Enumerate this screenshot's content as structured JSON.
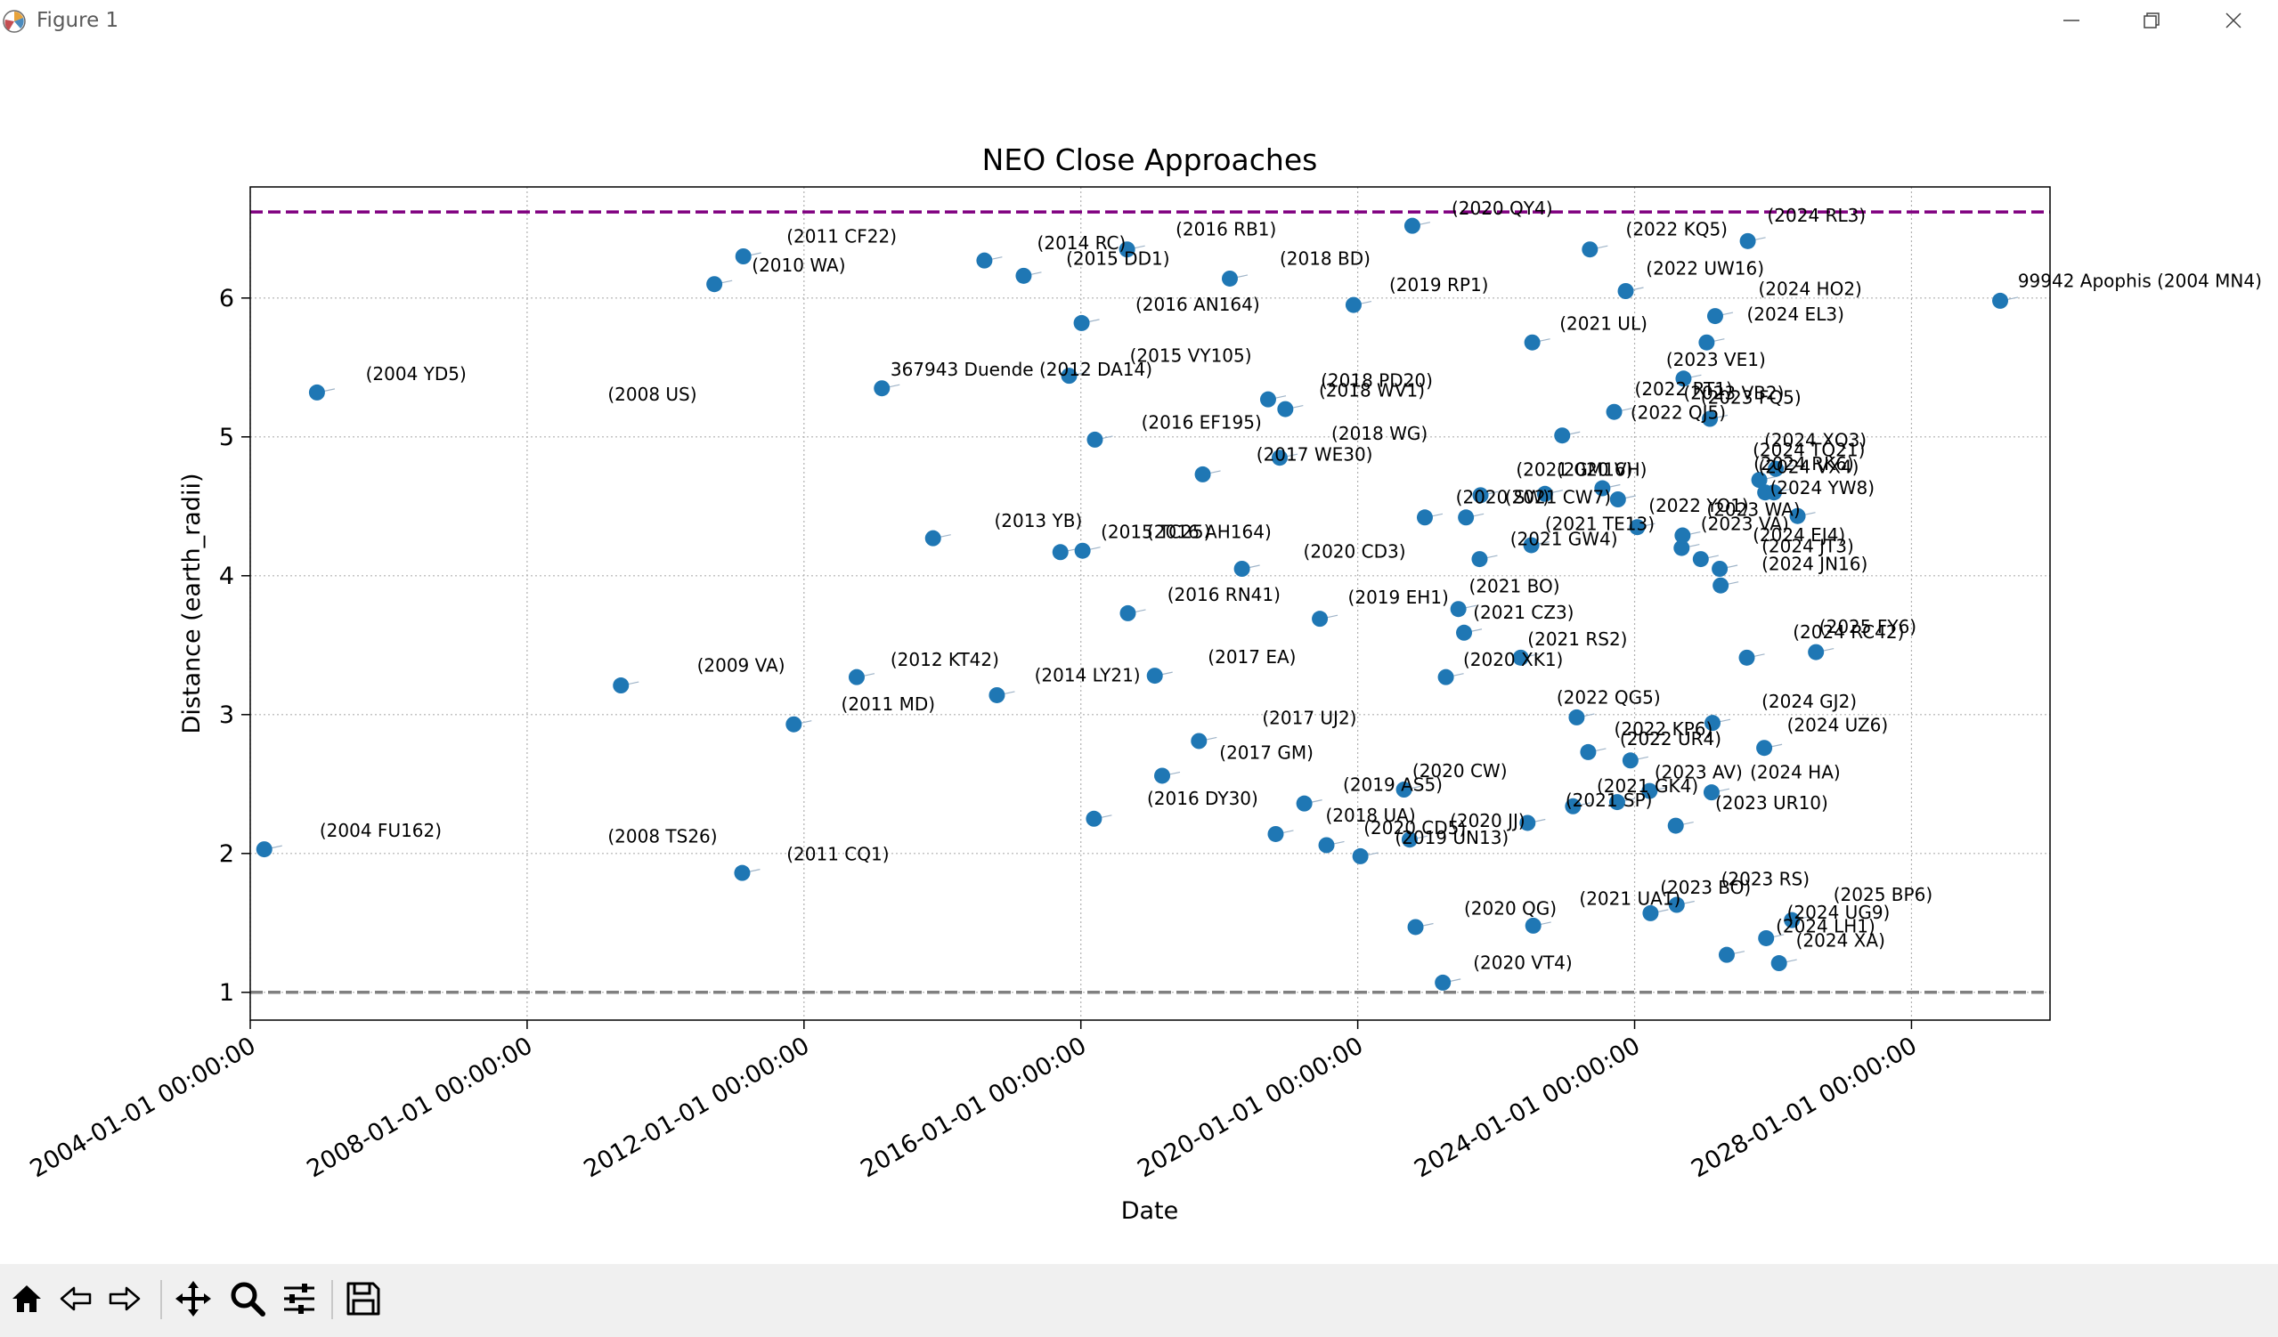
{
  "window": {
    "title": "Figure 1",
    "icons": {
      "app": "matplotlib-icon",
      "minimize": "minimize-icon",
      "maximize": "maximize-icon",
      "close": "close-icon"
    }
  },
  "toolbar": {
    "items": [
      {
        "name": "home",
        "icon": "home-icon"
      },
      {
        "name": "back",
        "icon": "back-arrow-icon"
      },
      {
        "name": "forward",
        "icon": "forward-arrow-icon"
      },
      {
        "name": "pan",
        "icon": "pan-move-icon"
      },
      {
        "name": "zoom",
        "icon": "zoom-magnifier-icon"
      },
      {
        "name": "configure-subplots",
        "icon": "sliders-icon"
      },
      {
        "name": "save",
        "icon": "save-floppy-icon"
      }
    ]
  },
  "chart_data": {
    "type": "scatter",
    "title": "NEO Close Approaches",
    "xlabel": "Date",
    "ylabel": "Distance (earth_radii)",
    "xlim": [
      "2004-01-01",
      "2030-01-01"
    ],
    "ylim": [
      0.8,
      6.8
    ],
    "x_ticks": [
      "2004-01-01 00:00:00",
      "2008-01-01 00:00:00",
      "2012-01-01 00:00:00",
      "2016-01-01 00:00:00",
      "2020-01-01 00:00:00",
      "2024-01-01 00:00:00",
      "2028-01-01 00:00:00"
    ],
    "y_ticks": [
      "1",
      "2",
      "3",
      "4",
      "5",
      "6"
    ],
    "grid": true,
    "colors": {
      "points": "#1f77b4",
      "upper_line": "#800080",
      "lower_line": "#808080"
    },
    "reference_lines": [
      {
        "y": 6.62,
        "color": "#800080",
        "style": "dashed"
      },
      {
        "y": 1.0,
        "color": "#808080",
        "style": "dashed"
      }
    ],
    "points": [
      {
        "x": "2004-03-15",
        "y": 2.03
      },
      {
        "x": "2004-12-18",
        "y": 5.32
      },
      {
        "x": "2009-05-10",
        "y": 3.21
      },
      {
        "x": "2010-09-15",
        "y": 6.1
      },
      {
        "x": "2011-02-09",
        "y": 1.86
      },
      {
        "x": "2011-02-15",
        "y": 6.3
      },
      {
        "x": "2011-11-08",
        "y": 2.93
      },
      {
        "x": "2012-10-05",
        "y": 3.27
      },
      {
        "x": "2013-02-15",
        "y": 5.35
      },
      {
        "x": "2013-11-12",
        "y": 4.27
      },
      {
        "x": "2014-08-10",
        "y": 6.27
      },
      {
        "x": "2014-10-15",
        "y": 3.14
      },
      {
        "x": "2015-03-05",
        "y": 6.16
      },
      {
        "x": "2015-09-15",
        "y": 4.17
      },
      {
        "x": "2015-10-31",
        "y": 5.44
      },
      {
        "x": "2016-01-05",
        "y": 5.82
      },
      {
        "x": "2016-01-10",
        "y": 4.18
      },
      {
        "x": "2016-03-10",
        "y": 2.25
      },
      {
        "x": "2016-03-15",
        "y": 4.98
      },
      {
        "x": "2016-09-01",
        "y": 6.35
      },
      {
        "x": "2016-09-05",
        "y": 3.73
      },
      {
        "x": "2017-01-25",
        "y": 3.28
      },
      {
        "x": "2017-03-05",
        "y": 2.56
      },
      {
        "x": "2017-09-15",
        "y": 2.81
      },
      {
        "x": "2017-10-05",
        "y": 4.73
      },
      {
        "x": "2018-02-25",
        "y": 6.14
      },
      {
        "x": "2018-04-30",
        "y": 4.05
      },
      {
        "x": "2018-09-15",
        "y": 5.27
      },
      {
        "x": "2018-10-25",
        "y": 2.14
      },
      {
        "x": "2018-11-15",
        "y": 4.85
      },
      {
        "x": "2018-12-15",
        "y": 5.2
      },
      {
        "x": "2019-03-25",
        "y": 2.36
      },
      {
        "x": "2019-06-15",
        "y": 3.69
      },
      {
        "x": "2019-07-20",
        "y": 2.06
      },
      {
        "x": "2019-12-10",
        "y": 5.95
      },
      {
        "x": "2020-01-15",
        "y": 1.98
      },
      {
        "x": "2020-09-01",
        "y": 2.46
      },
      {
        "x": "2020-10-01",
        "y": 2.1
      },
      {
        "x": "2020-10-15",
        "y": 6.52
      },
      {
        "x": "2020-11-01",
        "y": 1.47
      },
      {
        "x": "2020-12-20",
        "y": 4.42
      },
      {
        "x": "2021-03-25",
        "y": 1.07
      },
      {
        "x": "2021-04-10",
        "y": 3.27
      },
      {
        "x": "2021-06-15",
        "y": 3.76
      },
      {
        "x": "2021-07-15",
        "y": 3.59
      },
      {
        "x": "2021-07-25",
        "y": 4.42
      },
      {
        "x": "2021-10-05",
        "y": 4.12
      },
      {
        "x": "2021-10-10",
        "y": 4.58
      },
      {
        "x": "2022-05-10",
        "y": 3.41
      },
      {
        "x": "2022-06-15",
        "y": 2.22
      },
      {
        "x": "2022-07-05",
        "y": 4.22
      },
      {
        "x": "2022-07-10",
        "y": 5.68
      },
      {
        "x": "2022-07-15",
        "y": 1.48
      },
      {
        "x": "2022-09-15",
        "y": 4.59
      },
      {
        "x": "2022-12-15",
        "y": 5.01
      },
      {
        "x": "2023-02-10",
        "y": 2.34
      },
      {
        "x": "2023-03-01",
        "y": 2.98
      },
      {
        "x": "2023-05-01",
        "y": 2.73
      },
      {
        "x": "2023-05-10",
        "y": 6.35
      },
      {
        "x": "2023-07-15",
        "y": 4.63
      },
      {
        "x": "2023-09-15",
        "y": 5.18
      },
      {
        "x": "2023-10-01",
        "y": 2.37
      },
      {
        "x": "2023-10-05",
        "y": 4.55
      },
      {
        "x": "2023-11-15",
        "y": 6.05
      },
      {
        "x": "2023-12-10",
        "y": 2.67
      },
      {
        "x": "2024-01-15",
        "y": 4.35
      },
      {
        "x": "2024-03-20",
        "y": 2.45
      },
      {
        "x": "2024-03-25",
        "y": 1.57
      },
      {
        "x": "2024-08-05",
        "y": 2.2
      },
      {
        "x": "2024-08-10",
        "y": 1.63
      },
      {
        "x": "2024-09-05",
        "y": 4.2
      },
      {
        "x": "2024-09-10",
        "y": 4.29
      },
      {
        "x": "2024-09-15",
        "y": 5.42
      },
      {
        "x": "2024-12-15",
        "y": 4.12
      },
      {
        "x": "2025-01-15",
        "y": 5.68
      },
      {
        "x": "2025-02-01",
        "y": 5.13
      },
      {
        "x": "2025-02-10",
        "y": 2.44
      },
      {
        "x": "2025-02-15",
        "y": 2.94
      },
      {
        "x": "2025-03-01",
        "y": 5.87
      },
      {
        "x": "2025-03-25",
        "y": 4.05
      },
      {
        "x": "2025-03-30",
        "y": 3.93
      },
      {
        "x": "2025-05-01",
        "y": 1.27
      },
      {
        "x": "2025-08-15",
        "y": 3.41
      },
      {
        "x": "2025-08-20",
        "y": 6.41
      },
      {
        "x": "2025-10-20",
        "y": 4.69
      },
      {
        "x": "2025-11-15",
        "y": 2.76
      },
      {
        "x": "2025-11-20",
        "y": 4.6
      },
      {
        "x": "2025-11-25",
        "y": 1.39
      },
      {
        "x": "2026-01-05",
        "y": 4.6
      },
      {
        "x": "2026-01-15",
        "y": 4.77
      },
      {
        "x": "2026-02-01",
        "y": 1.21
      },
      {
        "x": "2026-04-10",
        "y": 1.52
      },
      {
        "x": "2026-05-10",
        "y": 4.43
      },
      {
        "x": "2026-08-15",
        "y": 3.45
      },
      {
        "x": "2029-04-13",
        "y": 5.98
      }
    ],
    "annotations": [
      {
        "text": "(2004 FU162)",
        "x": "2005-01-01",
        "y": 2.12
      },
      {
        "text": "(2004 YD5)",
        "x": "2005-09-01",
        "y": 5.41
      },
      {
        "text": "(2008 US)",
        "x": "2009-03-01",
        "y": 5.26
      },
      {
        "text": "(2008 TS26)",
        "x": "2009-03-01",
        "y": 2.08
      },
      {
        "text": "(2009 VA)",
        "x": "2010-06-15",
        "y": 3.31
      },
      {
        "text": "(2010 WA)",
        "x": "2011-04-01",
        "y": 6.19
      },
      {
        "text": "(2011 CF22)",
        "x": "2011-10-01",
        "y": 6.4
      },
      {
        "text": "(2011 CQ1)",
        "x": "2011-10-01",
        "y": 1.95
      },
      {
        "text": "(2011 MD)",
        "x": "2012-07-15",
        "y": 3.03
      },
      {
        "text": "367943 Duende (2012 DA14)",
        "x": "2013-04-01",
        "y": 5.44
      },
      {
        "text": "(2012 KT42)",
        "x": "2013-04-01",
        "y": 3.35
      },
      {
        "text": "(2013 YB)",
        "x": "2014-10-01",
        "y": 4.35
      },
      {
        "text": "(2014 LY21)",
        "x": "2015-05-01",
        "y": 3.24
      },
      {
        "text": "(2014 RC)",
        "x": "2015-05-15",
        "y": 6.35
      },
      {
        "text": "(2015 DD1)",
        "x": "2015-10-15",
        "y": 6.24
      },
      {
        "text": "(2015 VY105)",
        "x": "2016-09-15",
        "y": 5.54
      },
      {
        "text": "(2015 TC25)",
        "x": "2016-04-15",
        "y": 4.27
      },
      {
        "text": "(2016 AH164)",
        "x": "2016-12-15",
        "y": 4.27
      },
      {
        "text": "(2016 AN164)",
        "x": "2016-10-15",
        "y": 5.91
      },
      {
        "text": "(2016 EF195)",
        "x": "2016-11-15",
        "y": 5.06
      },
      {
        "text": "(2016 RN41)",
        "x": "2017-04-01",
        "y": 3.82
      },
      {
        "text": "(2016 DY30)",
        "x": "2016-12-15",
        "y": 2.35
      },
      {
        "text": "(2016 RB1)",
        "x": "2017-05-15",
        "y": 6.45
      },
      {
        "text": "(2017 EA)",
        "x": "2017-11-01",
        "y": 3.37
      },
      {
        "text": "(2017 GM)",
        "x": "2018-01-01",
        "y": 2.68
      },
      {
        "text": "(2017 UJ2)",
        "x": "2018-08-15",
        "y": 2.93
      },
      {
        "text": "(2017 WE30)",
        "x": "2018-07-15",
        "y": 4.83
      },
      {
        "text": "(2018 BD)",
        "x": "2018-11-15",
        "y": 6.24
      },
      {
        "text": "(2018 PD20)",
        "x": "2019-06-20",
        "y": 5.36
      },
      {
        "text": "(2018 WV1)",
        "x": "2019-06-10",
        "y": 5.29
      },
      {
        "text": "(2018 WG)",
        "x": "2019-08-15",
        "y": 4.98
      },
      {
        "text": "(2018 UA)",
        "x": "2019-07-15",
        "y": 2.23
      },
      {
        "text": "(2019 AS5)",
        "x": "2019-10-15",
        "y": 2.45
      },
      {
        "text": "(2019 EH1)",
        "x": "2019-11-10",
        "y": 3.8
      },
      {
        "text": "(2019 RP1)",
        "x": "2020-06-15",
        "y": 6.05
      },
      {
        "text": "(2019 UN13)",
        "x": "2020-07-15",
        "y": 2.07
      },
      {
        "text": "(2020 CD3)",
        "x": "2019-03-20",
        "y": 4.13
      },
      {
        "text": "(2020 CW)",
        "x": "2020-10-15",
        "y": 2.55
      },
      {
        "text": "(2020 CD5)",
        "x": "2020-02-01",
        "y": 2.14
      },
      {
        "text": "(2020 JJ)",
        "x": "2021-05-01",
        "y": 2.19
      },
      {
        "text": "(2020 QY4)",
        "x": "2021-05-10",
        "y": 6.6
      },
      {
        "text": "(2020 QG)",
        "x": "2021-07-15",
        "y": 1.56
      },
      {
        "text": "(2020 VT4)",
        "x": "2021-09-01",
        "y": 1.17
      },
      {
        "text": "(2020 XK1)",
        "x": "2021-07-10",
        "y": 3.35
      },
      {
        "text": "(2020 SW)",
        "x": "2021-06-01",
        "y": 4.52
      },
      {
        "text": "(2020 VH)",
        "x": "2022-11-15",
        "y": 4.72
      },
      {
        "text": "(2021 CW7)",
        "x": "2022-02-15",
        "y": 4.52
      },
      {
        "text": "(2021 GW4)",
        "x": "2022-03-15",
        "y": 4.22
      },
      {
        "text": "(2021 GM16)",
        "x": "2022-04-15",
        "y": 4.72
      },
      {
        "text": "(2021 BO)",
        "x": "2021-08-10",
        "y": 3.88
      },
      {
        "text": "(2021 CZ3)",
        "x": "2021-09-01",
        "y": 3.69
      },
      {
        "text": "(2021 RS2)",
        "x": "2022-06-15",
        "y": 3.5
      },
      {
        "text": "(2021 UL)",
        "x": "2022-12-01",
        "y": 5.77
      },
      {
        "text": "(2021 TE13)",
        "x": "2022-09-15",
        "y": 4.33
      },
      {
        "text": "(2021 SP)",
        "x": "2023-01-01",
        "y": 2.34
      },
      {
        "text": "(2021 UA1)",
        "x": "2023-03-15",
        "y": 1.63
      },
      {
        "text": "(2021 GK4)",
        "x": "2023-06-15",
        "y": 2.44
      },
      {
        "text": "(2022 QG5)",
        "x": "2022-11-15",
        "y": 3.08
      },
      {
        "text": "(2022 KP6)",
        "x": "2023-09-15",
        "y": 2.85
      },
      {
        "text": "(2022 UR4)",
        "x": "2023-10-15",
        "y": 2.78
      },
      {
        "text": "(2022 KQ5)",
        "x": "2023-11-15",
        "y": 6.45
      },
      {
        "text": "(2022 UW16)",
        "x": "2024-03-01",
        "y": 6.17
      },
      {
        "text": "(2022 RT1)",
        "x": "2024-01-01",
        "y": 5.3
      },
      {
        "text": "(2022 QJ5)",
        "x": "2023-12-10",
        "y": 5.13
      },
      {
        "text": "(2022 YO1)",
        "x": "2024-03-15",
        "y": 4.46
      },
      {
        "text": "(2023 AV)",
        "x": "2024-04-15",
        "y": 2.54
      },
      {
        "text": "(2023 BO)",
        "x": "2024-05-15",
        "y": 1.71
      },
      {
        "text": "(2023 VE1)",
        "x": "2024-06-15",
        "y": 5.51
      },
      {
        "text": "(2023 VB2)",
        "x": "2024-09-15",
        "y": 5.27
      },
      {
        "text": "(2023 FQ5)",
        "x": "2024-12-15",
        "y": 5.24
      },
      {
        "text": "(2023 WA)",
        "x": "2025-01-15",
        "y": 4.43
      },
      {
        "text": "(2023 VA)",
        "x": "2024-12-15",
        "y": 4.33
      },
      {
        "text": "(2023 UR10)",
        "x": "2025-03-01",
        "y": 2.32
      },
      {
        "text": "(2023 RS)",
        "x": "2025-04-01",
        "y": 1.77
      },
      {
        "text": "(2024 RL3)",
        "x": "2025-12-01",
        "y": 6.55
      },
      {
        "text": "(2024 HO2)",
        "x": "2025-10-15",
        "y": 6.02
      },
      {
        "text": "(2024 EL3)",
        "x": "2025-08-15",
        "y": 5.84
      },
      {
        "text": "(2024 XQ3)",
        "x": "2025-11-15",
        "y": 4.93
      },
      {
        "text": "(2024 TQ21)",
        "x": "2025-09-15",
        "y": 4.86
      },
      {
        "text": "(2024 RK6)",
        "x": "2025-09-20",
        "y": 4.76
      },
      {
        "text": "(2024 VX4)",
        "x": "2025-10-15",
        "y": 4.74
      },
      {
        "text": "(2024 YW8)",
        "x": "2025-12-15",
        "y": 4.59
      },
      {
        "text": "(2024 EJ4)",
        "x": "2025-09-15",
        "y": 4.25
      },
      {
        "text": "(2024 JT3)",
        "x": "2025-11-01",
        "y": 4.17
      },
      {
        "text": "(2024 JN16)",
        "x": "2025-11-01",
        "y": 4.04
      },
      {
        "text": "(2024 RC42)",
        "x": "2026-04-15",
        "y": 3.55
      },
      {
        "text": "(2025 FY6)",
        "x": "2026-09-01",
        "y": 3.59
      },
      {
        "text": "(2024 GJ2)",
        "x": "2025-11-01",
        "y": 3.05
      },
      {
        "text": "(2024 UZ6)",
        "x": "2026-03-15",
        "y": 2.88
      },
      {
        "text": "(2024 HA)",
        "x": "2025-09-01",
        "y": 2.54
      },
      {
        "text": "(2025 BP6)",
        "x": "2026-11-15",
        "y": 1.66
      },
      {
        "text": "(2024 UG9)",
        "x": "2026-03-15",
        "y": 1.53
      },
      {
        "text": "(2024 LH1)",
        "x": "2026-01-15",
        "y": 1.43
      },
      {
        "text": "(2024 XA)",
        "x": "2026-05-01",
        "y": 1.33
      },
      {
        "text": "99942 Apophis (2004 MN4)",
        "x": "2029-07-15",
        "y": 6.08
      }
    ]
  }
}
